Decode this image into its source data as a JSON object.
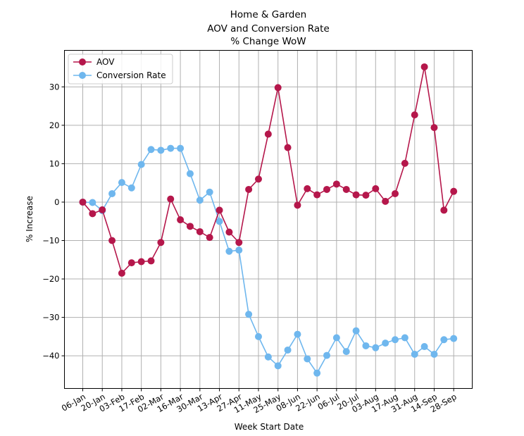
{
  "chart_data": {
    "type": "line",
    "title": [
      "Home & Garden",
      "AOV and Conversion Rate",
      "% Change WoW"
    ],
    "xlabel": "Week Start Date",
    "ylabel": "% Increase",
    "ylim": [
      -48.5,
      39.5
    ],
    "yticks": [
      30,
      20,
      10,
      0,
      -10,
      -20,
      -30,
      -40
    ],
    "ytick_labels": [
      "30",
      "20",
      "10",
      "0",
      "−10",
      "−20",
      "−30",
      "−40"
    ],
    "xtick_labels": [
      "06-Jan",
      "20-Jan",
      "03-Feb",
      "17-Feb",
      "02-Mar",
      "16-Mar",
      "30-Mar",
      "13-Apr",
      "27-Apr",
      "11-May",
      "25-May",
      "08-Jun",
      "22-Jun",
      "06-Jul",
      "20-Jul",
      "03-Aug",
      "17-Aug",
      "31-Aug",
      "14-Sep",
      "28-Sep"
    ],
    "weeks": 39,
    "grid": true,
    "legend_position": "top-left",
    "series": [
      {
        "name": "AOV",
        "color": "#b5174b",
        "values": [
          0,
          -3,
          -2,
          -10,
          -18.5,
          -15.8,
          -15.5,
          -15.3,
          -10.5,
          0.8,
          -4.6,
          -6.3,
          -7.7,
          -9.2,
          -2.1,
          -7.8,
          -10.5,
          3.3,
          6,
          17.7,
          29.8,
          14.2,
          -0.8,
          3.5,
          1.9,
          3.3,
          4.7,
          3.3,
          1.9,
          1.8,
          3.5,
          0.2,
          2.2,
          10.1,
          22.7,
          35.2,
          19.4,
          -2.1,
          2.8
        ]
      },
      {
        "name": "Conversion Rate",
        "color": "#6fb7ee",
        "values": [
          0,
          -0.1,
          -2.2,
          2.2,
          5.1,
          3.7,
          9.8,
          13.7,
          13.5,
          14,
          14,
          7.4,
          0.5,
          2.6,
          -5,
          -12.8,
          -12.5,
          -29.2,
          -35,
          -40.3,
          -42.6,
          -38.5,
          -34.4,
          -40.8,
          -44.5,
          -39.9,
          -35.3,
          -38.9,
          -33.5,
          -37.4,
          -37.9,
          -36.7,
          -35.8,
          -35.3,
          -39.6,
          -37.6,
          -39.6,
          -35.8,
          -35.5
        ]
      }
    ]
  }
}
